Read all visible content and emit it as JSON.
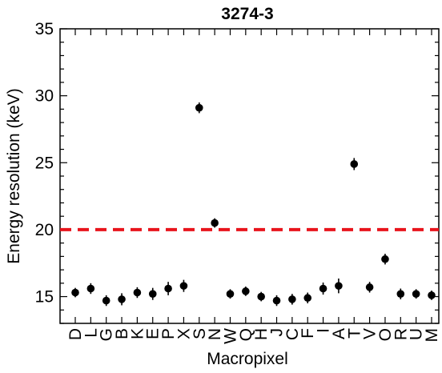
{
  "chart_data": {
    "type": "scatter",
    "title": "3274-3",
    "xlabel": "Macropixel",
    "ylabel": "Energy resolution (keV)",
    "ylim": [
      13,
      35
    ],
    "y_ticks": [
      15,
      20,
      25,
      30,
      35
    ],
    "categories": [
      "D",
      "L",
      "G",
      "B",
      "K",
      "E",
      "P",
      "X",
      "S",
      "N",
      "W",
      "Q",
      "H",
      "J",
      "C",
      "F",
      "I",
      "A",
      "T",
      "V",
      "O",
      "R",
      "U",
      "M"
    ],
    "series": [
      {
        "values": [
          15.3,
          15.6,
          14.7,
          14.8,
          15.3,
          15.2,
          15.6,
          15.8,
          29.1,
          20.5,
          15.2,
          15.4,
          15.0,
          14.7,
          14.8,
          14.9,
          15.6,
          15.8,
          24.9,
          15.7,
          17.8,
          15.2,
          15.2,
          15.1
        ],
        "errors": [
          0.35,
          0.4,
          0.4,
          0.45,
          0.4,
          0.45,
          0.5,
          0.45,
          0.4,
          0.35,
          0.35,
          0.35,
          0.35,
          0.4,
          0.4,
          0.4,
          0.45,
          0.55,
          0.45,
          0.4,
          0.4,
          0.4,
          0.35,
          0.35
        ],
        "color": "#000000"
      }
    ],
    "reference_line": {
      "y": 20,
      "style": "dashed",
      "color": "#e8141c"
    },
    "grid": false
  }
}
